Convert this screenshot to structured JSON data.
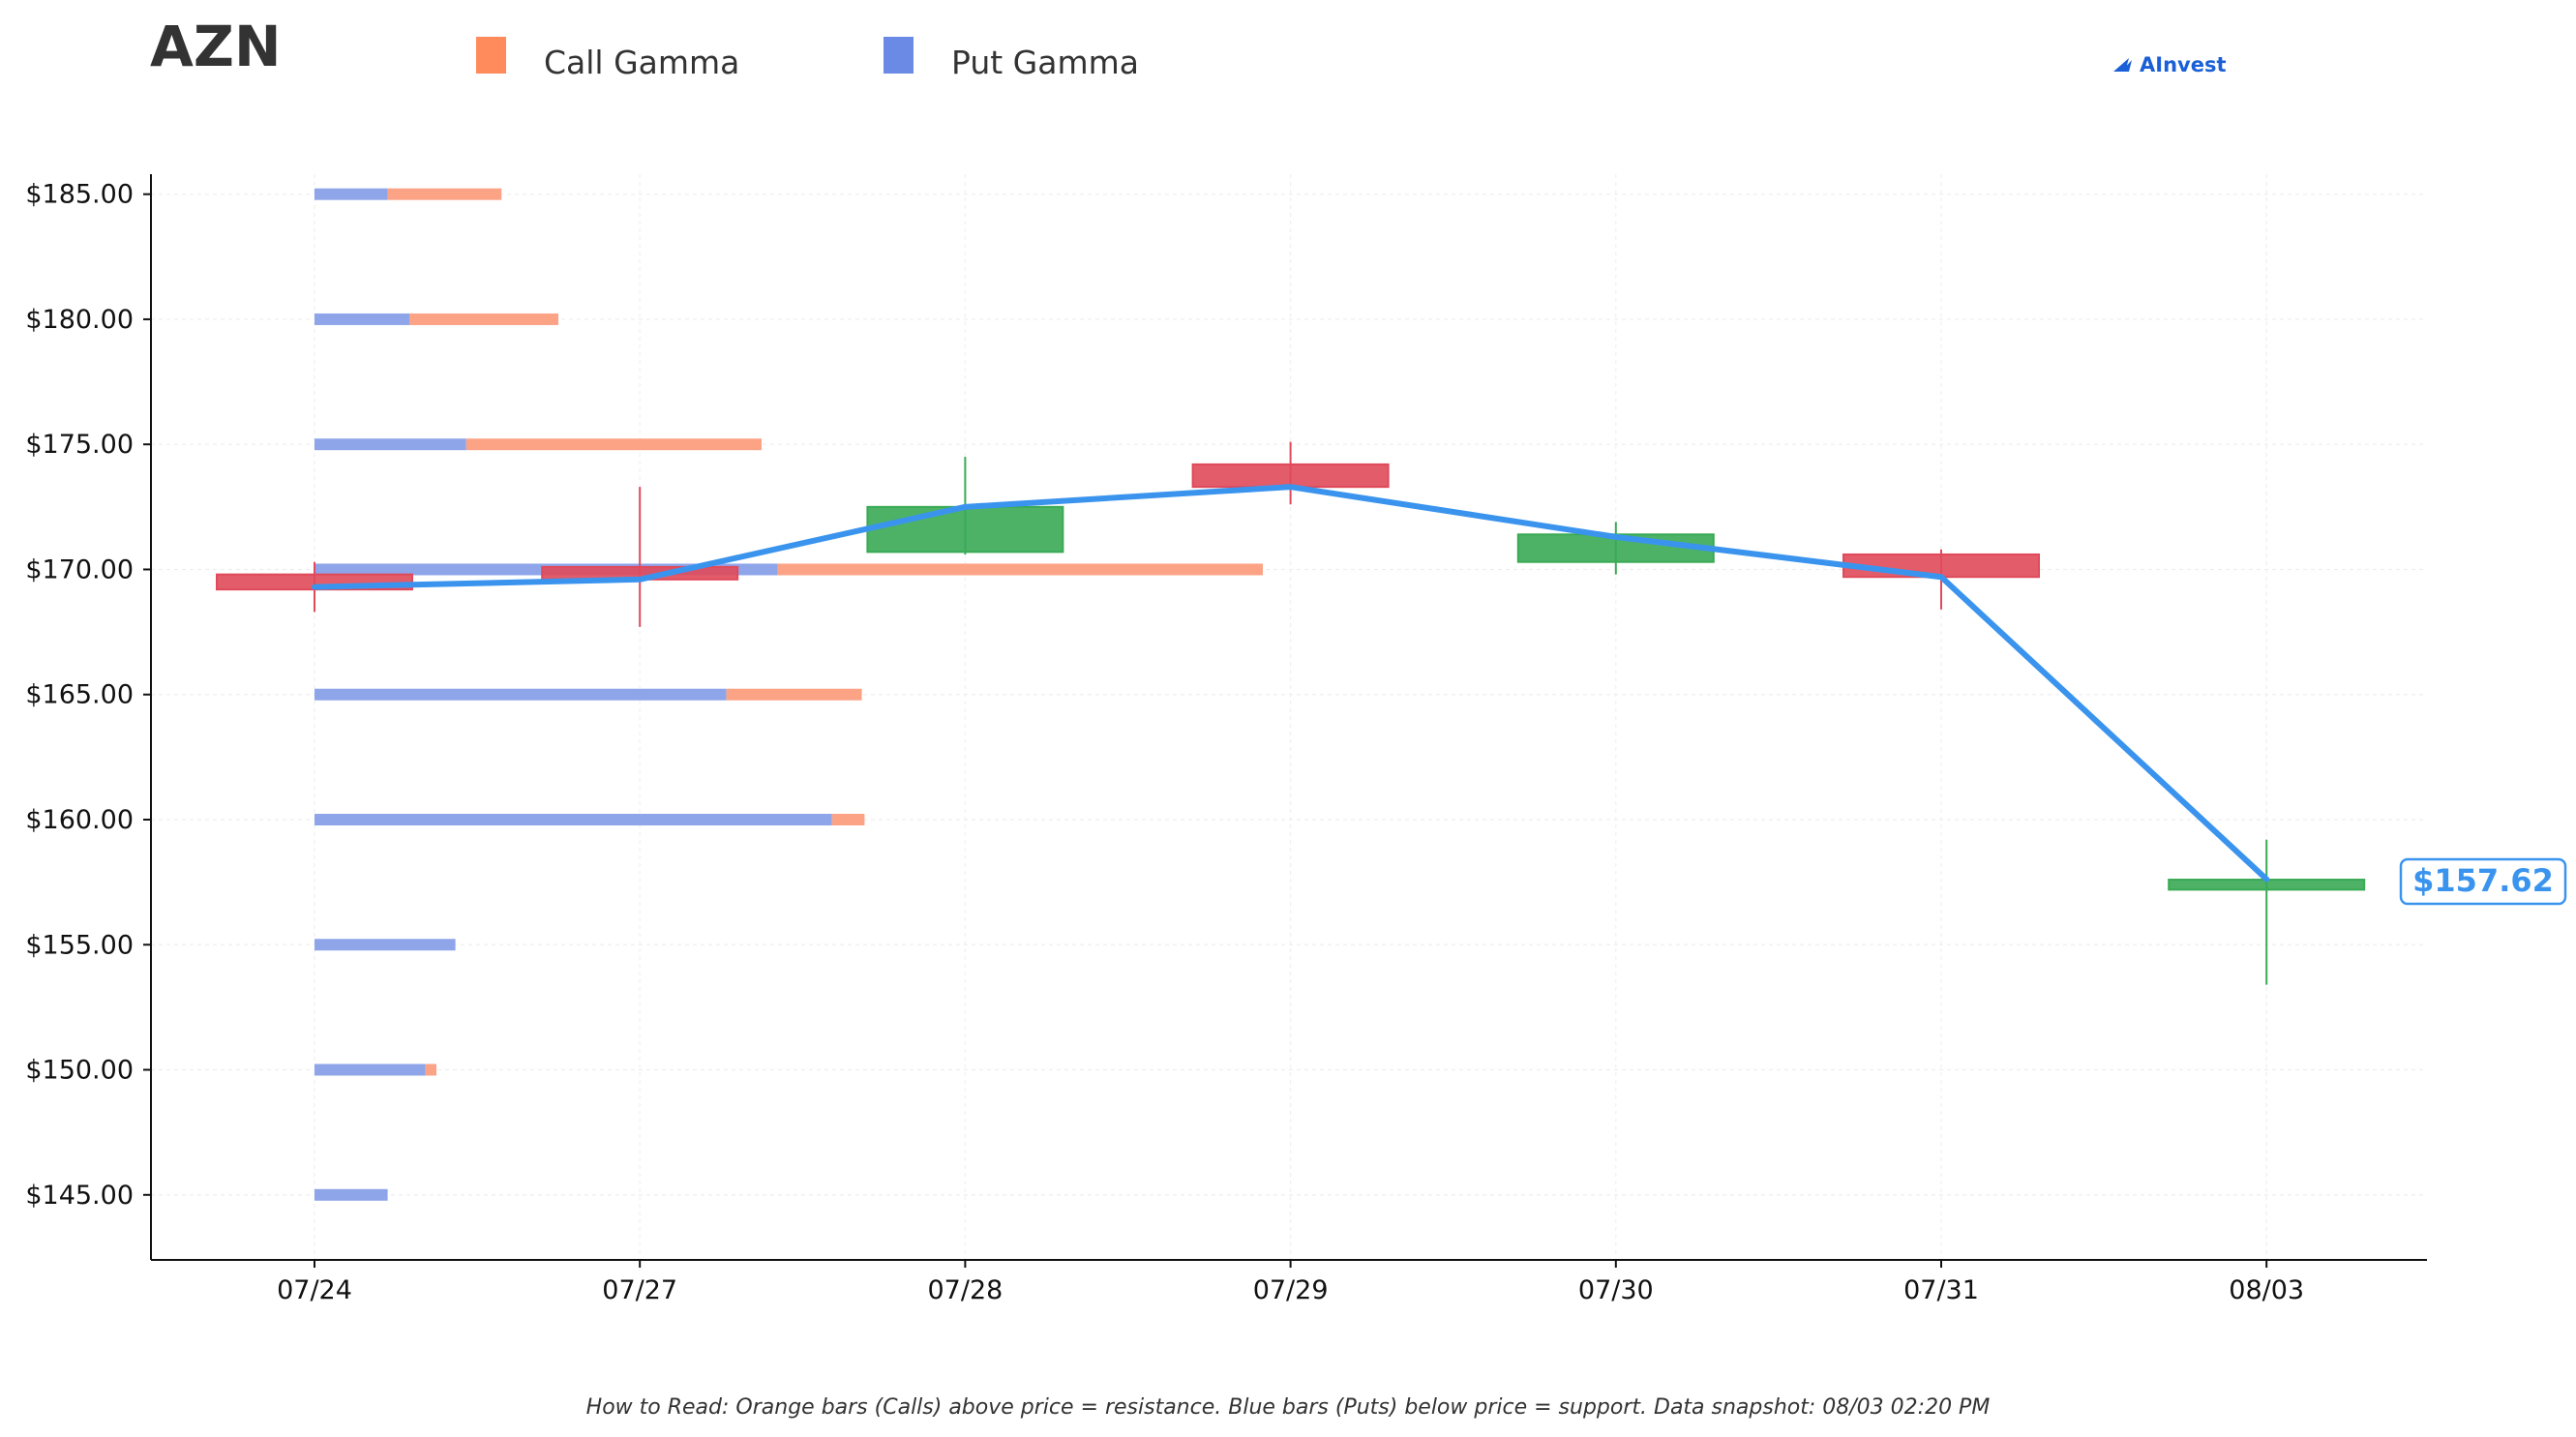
{
  "chart_data": {
    "type": "candlestick",
    "title": "AZN",
    "legend": [
      {
        "label": "Call Gamma",
        "color": "#ff8a5c"
      },
      {
        "label": "Put Gamma",
        "color": "#6b8ae6"
      }
    ],
    "logo": "AInvest",
    "x_categories": [
      "07/24",
      "07/27",
      "07/28",
      "07/29",
      "07/30",
      "07/31",
      "08/03"
    ],
    "y_ticks": [
      145,
      150,
      155,
      160,
      165,
      170,
      175,
      180,
      185
    ],
    "y_tick_labels": [
      "$145.00",
      "$150.00",
      "$155.00",
      "$160.00",
      "$165.00",
      "$170.00",
      "$175.00",
      "$180.00",
      "$185.00"
    ],
    "ylim": [
      142.4,
      185.8
    ],
    "grid": true,
    "candles": [
      {
        "date": "07/24",
        "open": 169.8,
        "close": 169.2,
        "high": 170.3,
        "low": 168.3
      },
      {
        "date": "07/27",
        "open": 170.1,
        "close": 169.6,
        "high": 173.3,
        "low": 167.7
      },
      {
        "date": "07/28",
        "open": 170.7,
        "close": 172.5,
        "high": 174.5,
        "low": 170.6
      },
      {
        "date": "07/29",
        "open": 174.2,
        "close": 173.3,
        "high": 175.1,
        "low": 172.6
      },
      {
        "date": "07/30",
        "open": 170.3,
        "close": 171.4,
        "high": 171.9,
        "low": 169.8
      },
      {
        "date": "07/31",
        "open": 170.6,
        "close": 169.7,
        "high": 170.8,
        "low": 168.4
      },
      {
        "date": "08/03",
        "open": 157.2,
        "close": 157.6,
        "high": 159.2,
        "low": 153.4
      }
    ],
    "price_line": {
      "color": "#3a94ee",
      "values": [
        169.3,
        169.6,
        172.5,
        173.3,
        171.3,
        169.7,
        157.62
      ]
    },
    "current_price_label": "$157.62",
    "gamma_bars": [
      {
        "strike": 185,
        "put": 0.27,
        "call": 0.42
      },
      {
        "strike": 180,
        "put": 0.35,
        "call": 0.55
      },
      {
        "strike": 175,
        "put": 0.56,
        "call": 1.09
      },
      {
        "strike": 170,
        "put": 1.71,
        "call": 1.79
      },
      {
        "strike": 165,
        "put": 1.52,
        "call": 0.5
      },
      {
        "strike": 160,
        "put": 1.91,
        "call": 0.12
      },
      {
        "strike": 155,
        "put": 0.52,
        "call": 0
      },
      {
        "strike": 150,
        "put": 0.41,
        "call": 0.04
      },
      {
        "strike": 145,
        "put": 0.27,
        "call": 0
      }
    ],
    "up_color": "#3aaa55",
    "down_color": "#e04a5a",
    "footnote": "How to Read: Orange bars (Calls) above price = resistance. Blue bars (Puts) below price = support. Data snapshot: 08/03 02:20 PM"
  }
}
